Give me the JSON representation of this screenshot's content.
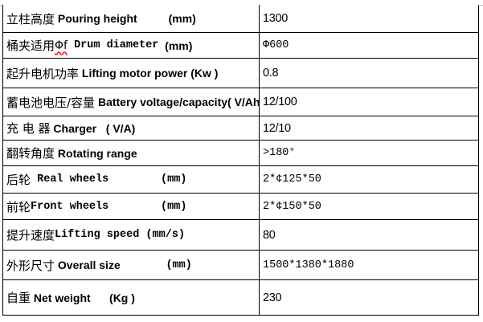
{
  "colors": {
    "background": "#ffffff",
    "table_border": "#000000",
    "top_gridline": "#c1c1c1",
    "spellcheck_underline": "#ff0000",
    "text": "#000000"
  },
  "table": {
    "columns": [
      "parameter",
      "value"
    ],
    "rows": [
      {
        "name": "pouring-height",
        "label": [
          {
            "text": "立柱高度",
            "style": "cjk"
          },
          {
            "text": " Pouring height",
            "style": "sans"
          },
          {
            "text": "          (mm)",
            "style": "sans"
          }
        ],
        "value": "1300",
        "value_style": "narrow"
      },
      {
        "name": "drum-diameter",
        "label": [
          {
            "text": "桶夹适用",
            "style": "cjk"
          },
          {
            "text": "Φf",
            "style": "spell"
          },
          {
            "text": " Drum diameter",
            "style": "mono"
          },
          {
            "text": "  (mm)",
            "style": "sans"
          }
        ],
        "value": "Φ600",
        "value_style": "cjk"
      },
      {
        "name": "lifting-motor-power",
        "label": [
          {
            "text": "起升电机功率",
            "style": "cjk"
          },
          {
            "text": " Lifting motor power",
            "style": "sans"
          },
          {
            "text": " (Kw )",
            "style": "sans"
          }
        ],
        "value": "0.8",
        "value_style": "narrow"
      },
      {
        "name": "battery-voltage-capacity",
        "label": [
          {
            "text": "蓄电池电压/容量",
            "style": "cjk"
          },
          {
            "text": " Battery voltage/capacity( V/Ah)",
            "style": "sans"
          }
        ],
        "value": "12/100",
        "value_style": "narrow"
      },
      {
        "name": "charger",
        "label": [
          {
            "text": "充 电 器",
            "style": "cjk"
          },
          {
            "text": " Charger",
            "style": "sans"
          },
          {
            "text": "   ( V/A)",
            "style": "sans"
          }
        ],
        "value": "12/10",
        "value_style": "narrow"
      },
      {
        "name": "rotating-range",
        "label": [
          {
            "text": "翻转角度",
            "style": "cjk"
          },
          {
            "text": " Rotating range",
            "style": "sans"
          }
        ],
        "value": ">180°",
        "value_style": "cjk"
      },
      {
        "name": "rear-wheels",
        "label": [
          {
            "text": "后轮",
            "style": "cjk"
          },
          {
            "text": " Real wheels",
            "style": "mono"
          },
          {
            "text": "        (mm)",
            "style": "mono"
          }
        ],
        "value": "2*¢125*50",
        "value_style": "cjk"
      },
      {
        "name": "front-wheels",
        "label": [
          {
            "text": "前轮",
            "style": "cjk"
          },
          {
            "text": "Front wheels",
            "style": "mono"
          },
          {
            "text": "        (mm)",
            "style": "mono"
          }
        ],
        "value": "2*¢150*50",
        "value_style": "cjk"
      },
      {
        "name": "lifting-speed",
        "label": [
          {
            "text": "提升速度",
            "style": "cjk"
          },
          {
            "text": "Lifting speed (mm/s)",
            "style": "mono"
          }
        ],
        "value": "80",
        "value_style": "narrow"
      },
      {
        "name": "overall-size",
        "label": [
          {
            "text": "外形尺寸",
            "style": "cjk"
          },
          {
            "text": " Overall size",
            "style": "sans"
          },
          {
            "text": "       (mm)",
            "style": "mono"
          }
        ],
        "value": "1500*1380*1880",
        "value_style": "cjk"
      },
      {
        "name": "net-weight",
        "label": [
          {
            "text": "自重",
            "style": "cjk"
          },
          {
            "text": " Net weight",
            "style": "sans"
          },
          {
            "text": "      (Kg )",
            "style": "sans"
          }
        ],
        "value": "230",
        "value_style": "narrow"
      }
    ]
  }
}
